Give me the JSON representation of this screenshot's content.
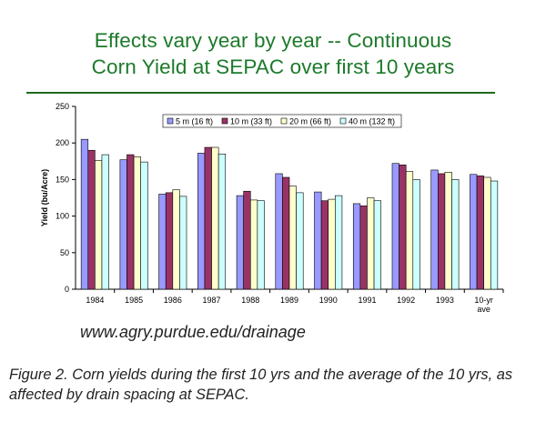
{
  "colors": {
    "title_text": "#1c7a2a",
    "title_rule": "#1e6b1e",
    "axis": "#000000"
  },
  "caption": "Figure 2. Corn yields during the first 10 yrs and the average of the 10 yrs, as affected by drain spacing at SEPAC.",
  "source_text": "www.agry.purdue.edu/drainage",
  "chart_data": {
    "type": "bar",
    "title_lines": [
      "Effects vary year by year -- Continuous",
      "Corn Yield at SEPAC over first 10 years"
    ],
    "xlabel": "",
    "ylabel": "Yield (bu/Acre)",
    "ylim": [
      0,
      250
    ],
    "yticks": [
      "0",
      "50",
      "100",
      "150",
      "200",
      "250"
    ],
    "grid": false,
    "legend_position": "top",
    "categories": [
      [
        "1984"
      ],
      [
        "1985"
      ],
      [
        "1986"
      ],
      [
        "1987"
      ],
      [
        "1988"
      ],
      [
        "1989"
      ],
      [
        "1990"
      ],
      [
        "1991"
      ],
      [
        "1992"
      ],
      [
        "1993"
      ],
      [
        "10-yr",
        "ave"
      ]
    ],
    "series": [
      {
        "name": "5 m (16 ft)",
        "color": "#9999ff",
        "values": [
          205,
          177,
          130,
          186,
          128,
          158,
          133,
          117,
          172,
          163,
          157
        ]
      },
      {
        "name": "10 m (33 ft)",
        "color": "#993366",
        "values": [
          190,
          184,
          132,
          194,
          134,
          153,
          121,
          114,
          170,
          158,
          155
        ]
      },
      {
        "name": "20 m (66 ft)",
        "color": "#ffffcc",
        "values": [
          176,
          181,
          136,
          194,
          122,
          141,
          123,
          125,
          161,
          160,
          153
        ]
      },
      {
        "name": "40 m (132 ft)",
        "color": "#ccffff",
        "values": [
          184,
          174,
          127,
          185,
          121,
          132,
          128,
          121,
          150,
          150,
          148
        ]
      }
    ]
  }
}
